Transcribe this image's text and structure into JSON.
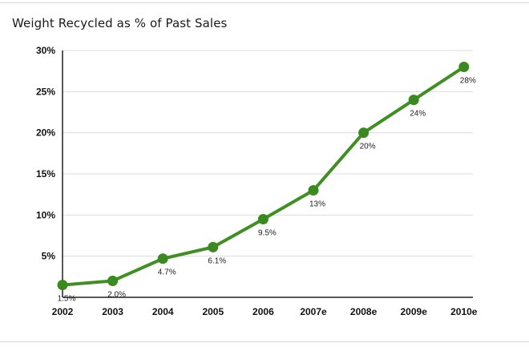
{
  "chart_data": {
    "type": "line",
    "title": "Weight Recycled as % of Past Sales",
    "categories": [
      "2002",
      "2003",
      "2004",
      "2005",
      "2006",
      "2007e",
      "2008e",
      "2009e",
      "2010e"
    ],
    "values": [
      1.5,
      2.0,
      4.7,
      6.1,
      9.5,
      13,
      20,
      24,
      28
    ],
    "data_labels": [
      "1.5%",
      "2.0%",
      "4.7%",
      "6.1%",
      "9.5%",
      "13%",
      "20%",
      "24%",
      "28%"
    ],
    "y_ticks": [
      5,
      10,
      15,
      20,
      25,
      30
    ],
    "y_tick_labels": [
      "5%",
      "10%",
      "15%",
      "20%",
      "25%",
      "30%"
    ],
    "ylim": [
      0,
      30
    ],
    "xlabel": "",
    "ylabel": "",
    "grid": true,
    "line_color": "#3f8f23",
    "marker_color": "#3a8a1f",
    "grid_color": "#dcdcdc"
  }
}
